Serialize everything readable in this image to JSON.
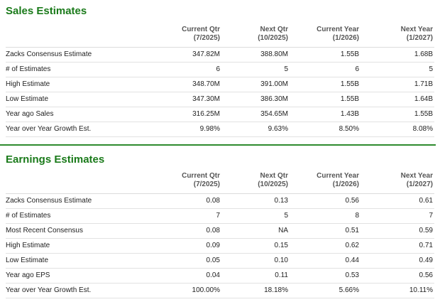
{
  "sales": {
    "title": "Sales Estimates",
    "columns": [
      {
        "line1": "Current Qtr",
        "line2": "(7/2025)"
      },
      {
        "line1": "Next Qtr",
        "line2": "(10/2025)"
      },
      {
        "line1": "Current Year",
        "line2": "(1/2026)"
      },
      {
        "line1": "Next Year",
        "line2": "(1/2027)"
      }
    ],
    "rows": [
      {
        "label": "Zacks Consensus Estimate",
        "values": [
          "347.82M",
          "388.80M",
          "1.55B",
          "1.68B"
        ]
      },
      {
        "label": "# of Estimates",
        "values": [
          "6",
          "5",
          "6",
          "5"
        ]
      },
      {
        "label": "High Estimate",
        "values": [
          "348.70M",
          "391.00M",
          "1.55B",
          "1.71B"
        ]
      },
      {
        "label": "Low Estimate",
        "values": [
          "347.30M",
          "386.30M",
          "1.55B",
          "1.64B"
        ]
      },
      {
        "label": "Year ago Sales",
        "values": [
          "316.25M",
          "354.65M",
          "1.43B",
          "1.55B"
        ]
      },
      {
        "label": "Year over Year Growth Est.",
        "values": [
          "9.98%",
          "9.63%",
          "8.50%",
          "8.08%"
        ]
      }
    ]
  },
  "earnings": {
    "title": "Earnings Estimates",
    "columns": [
      {
        "line1": "Current Qtr",
        "line2": "(7/2025)"
      },
      {
        "line1": "Next Qtr",
        "line2": "(10/2025)"
      },
      {
        "line1": "Current Year",
        "line2": "(1/2026)"
      },
      {
        "line1": "Next Year",
        "line2": "(1/2027)"
      }
    ],
    "rows": [
      {
        "label": "Zacks Consensus Estimate",
        "values": [
          "0.08",
          "0.13",
          "0.56",
          "0.61"
        ]
      },
      {
        "label": "# of Estimates",
        "values": [
          "7",
          "5",
          "8",
          "7"
        ]
      },
      {
        "label": "Most Recent Consensus",
        "values": [
          "0.08",
          "NA",
          "0.51",
          "0.59"
        ]
      },
      {
        "label": "High Estimate",
        "values": [
          "0.09",
          "0.15",
          "0.62",
          "0.71"
        ]
      },
      {
        "label": "Low Estimate",
        "values": [
          "0.05",
          "0.10",
          "0.44",
          "0.49"
        ]
      },
      {
        "label": "Year ago EPS",
        "values": [
          "0.04",
          "0.11",
          "0.53",
          "0.56"
        ]
      },
      {
        "label": "Year over Year Growth Est.",
        "values": [
          "100.00%",
          "18.18%",
          "5.66%",
          "10.11%"
        ]
      }
    ]
  },
  "colors": {
    "title_green": "#1a7a1a",
    "divider_green": "#2e8b2e"
  }
}
